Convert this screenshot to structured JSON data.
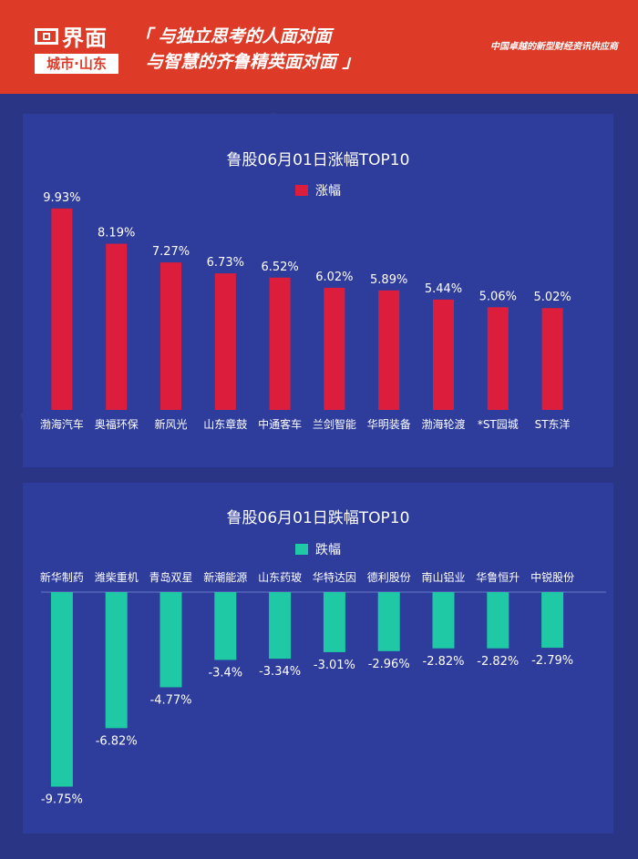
{
  "header": {
    "logo_text": "界面",
    "logo_sub": "城市·山东",
    "slogan_line1": "「 与独立思考的人面对面",
    "slogan_line2": "与智慧的齐鲁精英面对面 」",
    "tagline": "中国卓越的新型财经资讯供应商"
  },
  "colors": {
    "rise": "#dc1e3c",
    "fall": "#20c9a6",
    "background": "#2a3585",
    "panel": "#2e3c9c",
    "header": "#dd3b27"
  },
  "chart_data": [
    {
      "type": "bar",
      "title": "鲁股06月01日涨幅TOP10",
      "legend": "top",
      "series": [
        {
          "name": "涨幅",
          "color": "#dc1e3c",
          "values": [
            9.93,
            8.19,
            7.27,
            6.73,
            6.52,
            6.02,
            5.89,
            5.44,
            5.06,
            5.02
          ],
          "labels": [
            "9.93%",
            "8.19%",
            "7.27%",
            "6.73%",
            "6.52%",
            "6.02%",
            "5.89%",
            "5.44%",
            "5.06%",
            "5.02%"
          ]
        }
      ],
      "categories": [
        "渤海汽车",
        "奥福环保",
        "新风光",
        "山东章鼓",
        "中通客车",
        "兰剑智能",
        "华明装备",
        "渤海轮渡",
        "*ST园城",
        "ST东洋"
      ],
      "ylim": [
        0,
        11
      ],
      "grid": false
    },
    {
      "type": "bar",
      "title": "鲁股06月01日跌幅TOP10",
      "legend": "top",
      "series": [
        {
          "name": "跌幅",
          "color": "#20c9a6",
          "values": [
            -9.75,
            -6.82,
            -4.77,
            -3.4,
            -3.34,
            -3.01,
            -2.96,
            -2.82,
            -2.82,
            -2.79
          ],
          "labels": [
            "-9.75%",
            "-6.82%",
            "-4.77%",
            "-3.4%",
            "-3.34%",
            "-3.01%",
            "-2.96%",
            "-2.82%",
            "-2.82%",
            "-2.79%"
          ]
        }
      ],
      "categories": [
        "新华制药",
        "潍柴重机",
        "青岛双星",
        "新潮能源",
        "山东药玻",
        "华特达因",
        "德利股份",
        "南山铝业",
        "华鲁恒升",
        "中锐股份"
      ],
      "ylim": [
        -10,
        0
      ],
      "grid": false
    }
  ]
}
